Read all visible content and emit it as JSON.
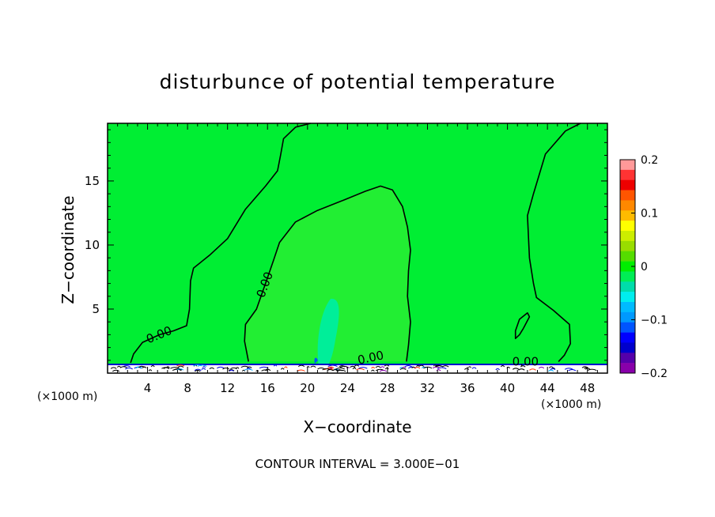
{
  "chart_data": {
    "type": "contour",
    "title": "disturbunce of potential temperature",
    "xlabel": "X−coordinate",
    "ylabel": "Z−coordinate",
    "x_unit_left": "(×1000 m)",
    "x_unit_right": "(×1000 m)",
    "footer": "CONTOUR INTERVAL = 3.000E−01",
    "xlim": [
      0,
      50
    ],
    "ylim": [
      0,
      19.5
    ],
    "x_ticks": [
      4,
      8,
      12,
      16,
      20,
      24,
      28,
      32,
      36,
      40,
      44,
      48
    ],
    "y_ticks": [
      5,
      10,
      15
    ],
    "contour_labels": [
      {
        "text": "0.00",
        "x": 5.3,
        "y": 2.7,
        "angle": -22
      },
      {
        "text": "0.00",
        "x": 16.1,
        "y": 6.8,
        "angle": -70
      },
      {
        "text": "0.00",
        "x": 26.4,
        "y": 0.9,
        "angle": -12
      },
      {
        "text": "0.00",
        "x": 41.8,
        "y": 0.6,
        "angle": 0
      }
    ],
    "contour_lines": [
      [
        [
          2.3,
          0.8
        ],
        [
          2.6,
          1.5
        ],
        [
          3.5,
          2.4
        ],
        [
          5.2,
          3.0
        ],
        [
          6.6,
          3.3
        ],
        [
          7.9,
          3.7
        ],
        [
          8.2,
          5.0
        ],
        [
          8.3,
          7.2
        ],
        [
          8.6,
          8.2
        ],
        [
          10.2,
          9.2
        ],
        [
          12.0,
          10.5
        ],
        [
          13.8,
          12.8
        ],
        [
          15.8,
          14.6
        ],
        [
          17.0,
          15.8
        ],
        [
          17.3,
          17.0
        ],
        [
          17.6,
          18.3
        ],
        [
          18.8,
          19.2
        ],
        [
          20.3,
          19.5
        ]
      ],
      [
        [
          14.1,
          0.9
        ],
        [
          13.7,
          2.5
        ],
        [
          13.8,
          3.8
        ],
        [
          14.9,
          5.0
        ],
        [
          15.8,
          7.0
        ],
        [
          16.6,
          8.8
        ],
        [
          17.2,
          10.2
        ],
        [
          18.8,
          11.8
        ],
        [
          21.0,
          12.7
        ],
        [
          23.6,
          13.5
        ],
        [
          25.8,
          14.2
        ],
        [
          27.3,
          14.6
        ],
        [
          28.5,
          14.3
        ],
        [
          29.5,
          13.0
        ],
        [
          30.0,
          11.4
        ],
        [
          30.3,
          9.6
        ],
        [
          30.1,
          8.0
        ],
        [
          30.0,
          6.0
        ],
        [
          30.3,
          4.0
        ],
        [
          30.1,
          2.2
        ],
        [
          29.9,
          0.9
        ]
      ],
      [
        [
          47.3,
          19.5
        ],
        [
          45.8,
          18.9
        ],
        [
          43.8,
          17.1
        ],
        [
          42.6,
          14.0
        ],
        [
          42.0,
          12.3
        ],
        [
          42.2,
          9.0
        ],
        [
          42.6,
          7.0
        ],
        [
          42.9,
          5.9
        ],
        [
          44.6,
          4.9
        ],
        [
          46.2,
          3.8
        ],
        [
          46.3,
          2.3
        ],
        [
          45.7,
          1.4
        ],
        [
          45.1,
          0.9
        ]
      ],
      [
        [
          41.6,
          3.5
        ],
        [
          41.2,
          3.0
        ],
        [
          40.8,
          2.7
        ],
        [
          40.8,
          3.3
        ],
        [
          41.2,
          4.2
        ],
        [
          42.0,
          4.7
        ],
        [
          42.2,
          4.4
        ],
        [
          41.6,
          3.5
        ]
      ]
    ],
    "colorbar": {
      "min": -0.2,
      "max": 0.2,
      "tick_values": [
        0.2,
        0.1,
        0,
        -0.1,
        -0.2
      ],
      "tick_labels": [
        "0.2",
        "0.1",
        "0",
        "−0.1",
        "−0.2"
      ],
      "colors_top_to_bottom": [
        "#ff9999",
        "#ff3333",
        "#ee0000",
        "#ff5500",
        "#ff8800",
        "#ffbb00",
        "#ffff00",
        "#ccee00",
        "#99dd00",
        "#55dd00",
        "#00ee00",
        "#00ee55",
        "#00ddaa",
        "#00eeee",
        "#00bbff",
        "#0099ff",
        "#0055ff",
        "#0000ff",
        "#0000cc",
        "#5500aa",
        "#8800aa"
      ]
    },
    "background_color": "#00ee33"
  }
}
